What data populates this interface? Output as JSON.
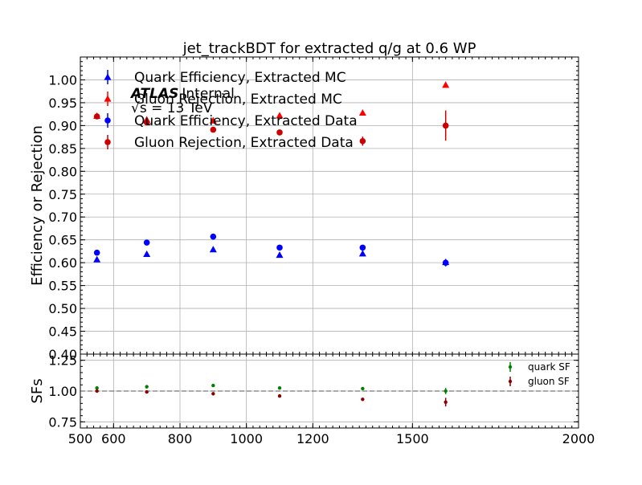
{
  "chart_data": [
    {
      "type": "scatter",
      "title": "jet_trackBDT for extracted q/g at 0.6 WP",
      "ylabel": "Efficiency or Rejection",
      "xlabel": "",
      "xlim": [
        500,
        2000
      ],
      "ylim": [
        0.4,
        1.05
      ],
      "grid": true,
      "legend_position": "top-left",
      "xticks": [
        500,
        600,
        800,
        1000,
        1200,
        1500,
        2000
      ],
      "yticks": [
        0.4,
        0.45,
        0.5,
        0.55,
        0.6,
        0.65,
        0.7,
        0.75,
        0.8,
        0.85,
        0.9,
        0.95,
        1.0
      ],
      "annotation": {
        "experiment": "ATLAS",
        "status": "Internal",
        "energy": "√s = 13 TeV"
      },
      "x": [
        550,
        700,
        900,
        1100,
        1350,
        1600
      ],
      "series": [
        {
          "name": "Quark Efficiency, Extracted MC",
          "marker": "triangle",
          "color": "#0000ff",
          "values": [
            0.607,
            0.619,
            0.629,
            0.617,
            0.62,
            0.601
          ],
          "errors": [
            0.004,
            0.004,
            0.004,
            0.004,
            0.005,
            0.006
          ]
        },
        {
          "name": "Gluon Rejection, Extracted MC",
          "marker": "triangle",
          "color": "#ff0000",
          "values": [
            0.921,
            0.913,
            0.911,
            0.922,
            0.928,
            0.989
          ],
          "errors": [
            0.003,
            0.004,
            0.004,
            0.004,
            0.004,
            0.004
          ]
        },
        {
          "name": "Quark Efficiency, Extracted Data",
          "marker": "circle",
          "color": "#0000ff",
          "values": [
            0.622,
            0.644,
            0.657,
            0.633,
            0.633,
            0.6
          ],
          "errors": [
            0.003,
            0.003,
            0.003,
            0.004,
            0.005,
            0.008
          ]
        },
        {
          "name": "Gluon Rejection, Extracted Data",
          "marker": "circle",
          "color": "#cc0000",
          "values": [
            0.92,
            0.907,
            0.891,
            0.885,
            0.866,
            0.9
          ],
          "errors": [
            0.004,
            0.006,
            0.006,
            0.005,
            0.01,
            0.033
          ]
        }
      ]
    },
    {
      "type": "scatter",
      "ylabel": "SFs",
      "xlim": [
        500,
        2000
      ],
      "ylim": [
        0.7,
        1.3
      ],
      "yticks": [
        0.75,
        1.0,
        1.25
      ],
      "xticks": [
        500,
        600,
        800,
        1000,
        1200,
        1500,
        2000
      ],
      "reference_line": 1.0,
      "grid": true,
      "legend_position": "top-right",
      "x": [
        550,
        700,
        900,
        1100,
        1350,
        1600
      ],
      "series": [
        {
          "name": "quark SF",
          "color": "#008000",
          "values": [
            1.025,
            1.035,
            1.045,
            1.025,
            1.02,
            1.0
          ],
          "errors": [
            0.006,
            0.006,
            0.006,
            0.007,
            0.009,
            0.025
          ]
        },
        {
          "name": "gluon SF",
          "color": "#8b0000",
          "values": [
            1.0,
            0.993,
            0.978,
            0.96,
            0.933,
            0.91
          ],
          "errors": [
            0.005,
            0.007,
            0.007,
            0.006,
            0.011,
            0.035
          ]
        }
      ]
    }
  ]
}
